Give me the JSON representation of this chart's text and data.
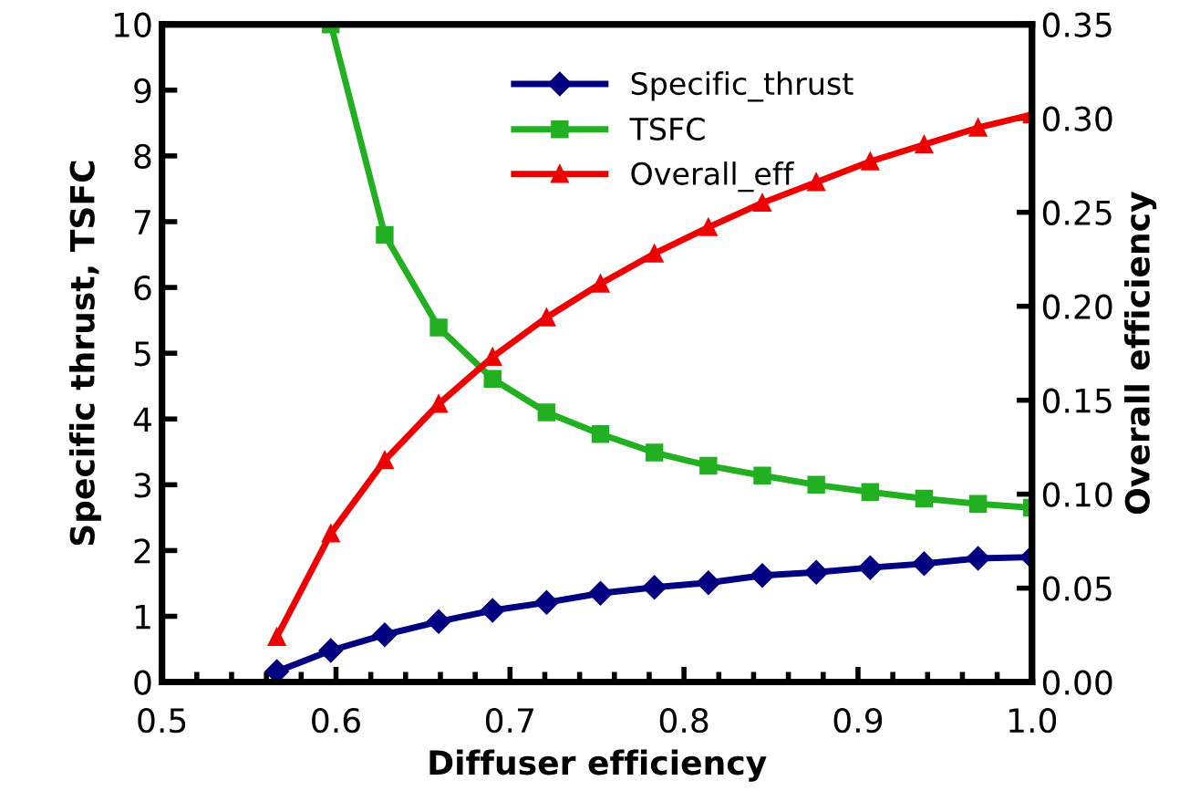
{
  "chart_data": {
    "type": "line",
    "xlabel": "Diffuser efficiency",
    "ylabel": "Specific thrust, TSFC",
    "y2label": "Overall efficiency",
    "x": [
      0.566,
      0.597,
      0.628,
      0.659,
      0.69,
      0.721,
      0.752,
      0.783,
      0.814,
      0.845,
      0.876,
      0.907,
      0.938,
      0.969,
      1.0
    ],
    "series": [
      {
        "name": "Specific_thrust",
        "color": "#000080",
        "marker": "diamond",
        "values": [
          0.16,
          0.48,
          0.72,
          0.92,
          1.09,
          1.21,
          1.35,
          1.44,
          1.51,
          1.62,
          1.67,
          1.74,
          1.8,
          1.88,
          1.9
        ]
      },
      {
        "name": "TSFC",
        "color": "#22b022",
        "marker": "square",
        "values": [
          null,
          10,
          6.8,
          5.39,
          4.61,
          4.1,
          3.77,
          3.49,
          3.29,
          3.14,
          3.0,
          2.89,
          2.79,
          2.71,
          2.65
        ]
      },
      {
        "name": "Overall_eff",
        "color": "#ee0000",
        "marker": "triangle",
        "axis": "y2",
        "values": [
          0.024,
          0.079,
          0.118,
          0.148,
          0.173,
          0.194,
          0.212,
          0.228,
          0.242,
          0.255,
          0.266,
          0.277,
          0.286,
          0.295,
          0.302
        ]
      }
    ],
    "xlim": [
      0.5,
      1.0
    ],
    "xticks": [
      0.5,
      0.6,
      0.7,
      0.8,
      0.9,
      {
        "value": 1,
        "label": "1.0"
      }
    ],
    "ylim": [
      0,
      10
    ],
    "yticks": [
      0,
      1,
      2,
      3,
      4,
      5,
      6,
      7,
      8,
      9,
      10
    ],
    "y2lim": [
      0,
      0.35
    ],
    "y2ticks": [
      {
        "value": 0,
        "label": "0.00"
      },
      {
        "value": 0.05,
        "label": "0.05"
      },
      {
        "value": 0.1,
        "label": "0.10"
      },
      {
        "value": 0.15,
        "label": "0.15"
      },
      {
        "value": 0.2,
        "label": "0.20"
      },
      {
        "value": 0.25,
        "label": "0.25"
      },
      {
        "value": 0.3,
        "label": "0.30"
      },
      {
        "value": 0.35,
        "label": "0.35"
      }
    ],
    "legend": "top",
    "grid": false,
    "line_style": "solid"
  }
}
